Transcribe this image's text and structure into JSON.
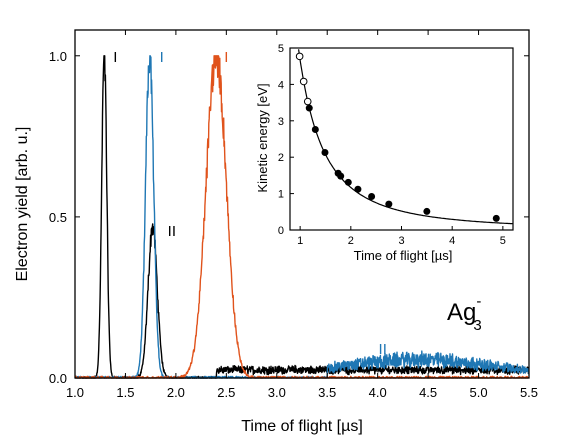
{
  "chart_data": [
    {
      "type": "line",
      "xlabel": "Time of flight [µs]",
      "ylabel": "Electron yield [arb. u.]",
      "xlim": [
        1.0,
        5.5
      ],
      "ylim": [
        0.0,
        1.08
      ],
      "xticks": [
        "1.0",
        "1.5",
        "2.0",
        "2.5",
        "3.0",
        "3.5",
        "4.0",
        "4.5",
        "5.0",
        "5.5"
      ],
      "yticks": [
        "0.0",
        "0.5",
        "1.0"
      ],
      "species_label": {
        "base": "Ag",
        "sub": "3",
        "sup": "-"
      },
      "series": [
        {
          "color": "#000000",
          "peaks": [
            {
              "x": 1.29,
              "height": 1.0,
              "width": 0.025
            },
            {
              "x": 1.77,
              "height": 0.47,
              "width": 0.045
            }
          ],
          "tail": {
            "start": 2.4,
            "end": 5.5,
            "height": 0.025
          }
        },
        {
          "color": "#1f77b4",
          "peaks": [
            {
              "x": 1.74,
              "height": 1.0,
              "width": 0.04
            }
          ],
          "tail": {
            "start": 3.5,
            "end": 5.5,
            "height": 0.045,
            "center": 4.4
          }
        },
        {
          "color": "#e0531c",
          "peaks": [
            {
              "x": 2.4,
              "height": 1.0,
              "width": 0.1
            }
          ],
          "tail": null
        }
      ],
      "annotations": [
        {
          "text": "I",
          "color": "#000000",
          "x": 1.4,
          "y": 0.98
        },
        {
          "text": "I",
          "color": "#1f77b4",
          "x": 1.86,
          "y": 0.98
        },
        {
          "text": "I",
          "color": "#e0531c",
          "x": 2.5,
          "y": 0.98
        },
        {
          "text": "II",
          "color": "#000000",
          "x": 1.96,
          "y": 0.44
        },
        {
          "text": "II",
          "color": "#1f77b4",
          "x": 4.05,
          "y": 0.075
        }
      ]
    },
    {
      "type": "scatter",
      "xlabel": "Time of flight [µs]",
      "ylabel": "Kinetic energy [eV]",
      "xlim": [
        0.8,
        5.2
      ],
      "ylim": [
        0,
        5
      ],
      "xticks": [
        "1",
        "2",
        "3",
        "4",
        "5"
      ],
      "yticks": [
        "0",
        "1",
        "2",
        "3",
        "4",
        "5"
      ],
      "fit": {
        "form": "E = 4.67 / t^2",
        "coefficient": 4.67
      },
      "open_points": {
        "x": [
          0.99,
          1.07,
          1.15
        ],
        "y": [
          4.77,
          4.08,
          3.53
        ]
      },
      "filled_points": {
        "x": [
          1.18,
          1.3,
          1.49,
          1.75,
          1.8,
          1.95,
          2.14,
          2.41,
          2.75,
          3.5,
          4.87
        ],
        "y": [
          3.35,
          2.76,
          2.13,
          1.56,
          1.48,
          1.31,
          1.12,
          0.92,
          0.71,
          0.51,
          0.32
        ]
      }
    }
  ]
}
